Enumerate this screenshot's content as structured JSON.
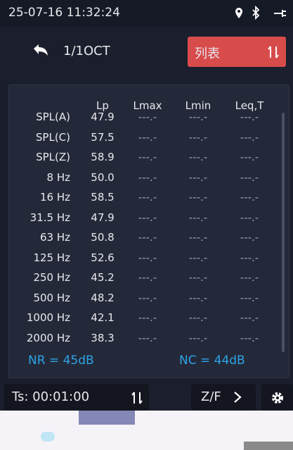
{
  "status": {
    "datetime": "25-07-16 11:32:24"
  },
  "header": {
    "title": "1/1OCT",
    "button": "列表"
  },
  "table": {
    "columns": [
      "Lp",
      "Lmax",
      "Lmin",
      "Leq,T"
    ],
    "rows": [
      [
        "SPL(A)",
        "47.9",
        "---.-",
        "---.-",
        "---.-"
      ],
      [
        "SPL(C)",
        "57.5",
        "---.-",
        "---.-",
        "---.-"
      ],
      [
        "SPL(Z)",
        "58.9",
        "---.-",
        "---.-",
        "---.-"
      ],
      [
        "8 Hz",
        "50.0",
        "---.-",
        "---.-",
        "---.-"
      ],
      [
        "16 Hz",
        "58.5",
        "---.-",
        "---.-",
        "---.-"
      ],
      [
        "31.5 Hz",
        "47.9",
        "---.-",
        "---.-",
        "---.-"
      ],
      [
        "63 Hz",
        "50.8",
        "---.-",
        "---.-",
        "---.-"
      ],
      [
        "125 Hz",
        "52.6",
        "---.-",
        "---.-",
        "---.-"
      ],
      [
        "250 Hz",
        "45.2",
        "---.-",
        "---.-",
        "---.-"
      ],
      [
        "500 Hz",
        "48.2",
        "---.-",
        "---.-",
        "---.-"
      ],
      [
        "1000 Hz",
        "42.1",
        "---.-",
        "---.-",
        "---.-"
      ],
      [
        "2000 Hz",
        "38.3",
        "---.-",
        "---.-",
        "---.-"
      ]
    ],
    "nr": "NR = 45dB",
    "nc": "NC = 44dB"
  },
  "bottom": {
    "ts": "Ts: 00:01:00",
    "mode": "Z/F"
  }
}
